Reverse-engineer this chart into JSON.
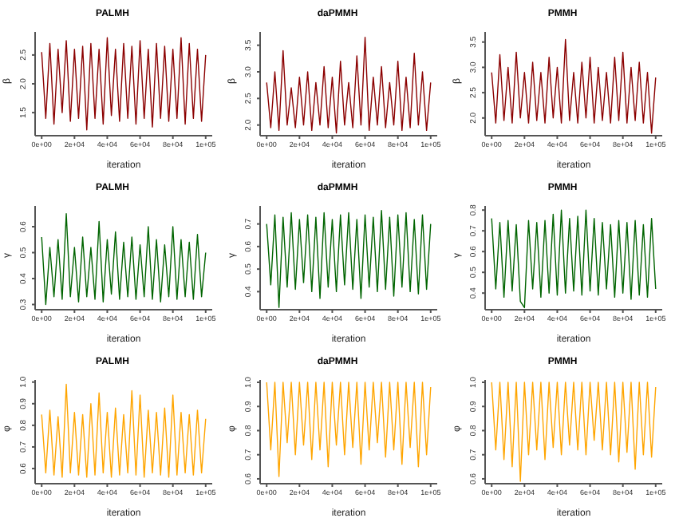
{
  "chart_data": [
    {
      "type": "line",
      "title": "PALMH",
      "xlabel": "iteration",
      "ylabel": "β",
      "xlim": [
        -4000,
        104000
      ],
      "xticks": [
        {
          "value": 0,
          "label": "0e+00"
        },
        {
          "value": 20000,
          "label": "2e+04"
        },
        {
          "value": 40000,
          "label": "4e+04"
        },
        {
          "value": 60000,
          "label": "6e+04"
        },
        {
          "value": 80000,
          "label": "8e+04"
        },
        {
          "value": 100000,
          "label": "1e+05"
        }
      ],
      "ylim": [
        1.1,
        2.9
      ],
      "yticks": [
        1.5,
        {
          "value": 2,
          "label": "2.0"
        },
        2.5
      ],
      "x": [
        0,
        2500,
        5000,
        7500,
        10000,
        12500,
        15000,
        17500,
        20000,
        22500,
        25000,
        27500,
        30000,
        32500,
        35000,
        37500,
        40000,
        42500,
        45000,
        47500,
        50000,
        52500,
        55000,
        57500,
        60000,
        62500,
        65000,
        67500,
        70000,
        72500,
        75000,
        77500,
        80000,
        82500,
        85000,
        87500,
        90000,
        92500,
        95000,
        97500,
        100000
      ],
      "series": [
        {
          "color": "#8b0000",
          "values": [
            2.55,
            1.4,
            2.7,
            1.3,
            2.6,
            1.5,
            2.75,
            1.35,
            2.6,
            1.4,
            2.65,
            1.2,
            2.7,
            1.4,
            2.6,
            1.3,
            2.8,
            1.45,
            2.6,
            1.35,
            2.7,
            1.4,
            2.65,
            1.3,
            2.75,
            1.4,
            2.6,
            1.25,
            2.7,
            1.4,
            2.65,
            1.35,
            2.6,
            1.4,
            2.8,
            1.3,
            2.7,
            1.4,
            2.6,
            1.35,
            2.5
          ]
        }
      ]
    },
    {
      "type": "line",
      "title": "daPMMH",
      "xlabel": "iteration",
      "ylabel": "β",
      "xlim": [
        -4000,
        104000
      ],
      "xticks": [
        {
          "value": 0,
          "label": "0e+00"
        },
        {
          "value": 20000,
          "label": "2e+04"
        },
        {
          "value": 40000,
          "label": "4e+04"
        },
        {
          "value": 60000,
          "label": "6e+04"
        },
        {
          "value": 80000,
          "label": "8e+04"
        },
        {
          "value": 100000,
          "label": "1e+05"
        }
      ],
      "ylim": [
        1.8,
        3.75
      ],
      "yticks": [
        {
          "value": 2,
          "label": "2.0"
        },
        2.5,
        {
          "value": 3,
          "label": "3.0"
        },
        3.5
      ],
      "x": [
        0,
        2500,
        5000,
        7500,
        10000,
        12500,
        15000,
        17500,
        20000,
        22500,
        25000,
        27500,
        30000,
        32500,
        35000,
        37500,
        40000,
        42500,
        45000,
        47500,
        50000,
        52500,
        55000,
        57500,
        60000,
        62500,
        65000,
        67500,
        70000,
        72500,
        75000,
        77500,
        80000,
        82500,
        85000,
        87500,
        90000,
        92500,
        95000,
        97500,
        100000
      ],
      "series": [
        {
          "color": "#8b0000",
          "values": [
            2.8,
            1.95,
            3.0,
            1.9,
            3.4,
            2.0,
            2.7,
            1.95,
            2.9,
            2.0,
            3.0,
            1.9,
            2.8,
            2.0,
            3.1,
            1.95,
            2.9,
            1.85,
            3.2,
            2.0,
            2.8,
            1.95,
            3.3,
            2.0,
            3.65,
            1.9,
            2.9,
            2.0,
            3.1,
            1.95,
            2.8,
            2.0,
            3.2,
            1.9,
            2.9,
            1.95,
            3.35,
            2.0,
            3.0,
            1.9,
            2.8
          ]
        }
      ]
    },
    {
      "type": "line",
      "title": "PMMH",
      "xlabel": "iteration",
      "ylabel": "β",
      "xlim": [
        -4000,
        104000
      ],
      "xticks": [
        {
          "value": 0,
          "label": "0e+00"
        },
        {
          "value": 20000,
          "label": "2e+04"
        },
        {
          "value": 40000,
          "label": "4e+04"
        },
        {
          "value": 60000,
          "label": "6e+04"
        },
        {
          "value": 80000,
          "label": "8e+04"
        },
        {
          "value": 100000,
          "label": "1e+05"
        }
      ],
      "ylim": [
        1.65,
        3.7
      ],
      "yticks": [
        {
          "value": 2,
          "label": "2.0"
        },
        2.5,
        {
          "value": 3,
          "label": "3.0"
        },
        3.5
      ],
      "x": [
        0,
        2500,
        5000,
        7500,
        10000,
        12500,
        15000,
        17500,
        20000,
        22500,
        25000,
        27500,
        30000,
        32500,
        35000,
        37500,
        40000,
        42500,
        45000,
        47500,
        50000,
        52500,
        55000,
        57500,
        60000,
        62500,
        65000,
        67500,
        70000,
        72500,
        75000,
        77500,
        80000,
        82500,
        85000,
        87500,
        90000,
        92500,
        95000,
        97500,
        100000
      ],
      "series": [
        {
          "color": "#8b0000",
          "values": [
            2.9,
            1.9,
            3.25,
            1.95,
            3.0,
            1.9,
            3.3,
            2.0,
            2.9,
            1.9,
            3.1,
            1.95,
            2.9,
            1.9,
            3.2,
            2.0,
            3.0,
            1.9,
            3.55,
            1.95,
            2.9,
            1.9,
            3.1,
            2.0,
            3.2,
            1.9,
            3.0,
            1.95,
            2.9,
            1.9,
            3.2,
            1.95,
            3.3,
            1.9,
            3.0,
            1.95,
            3.1,
            1.9,
            2.9,
            1.7,
            2.8
          ]
        }
      ]
    },
    {
      "type": "line",
      "title": "PALMH",
      "xlabel": "iteration",
      "ylabel": "γ",
      "xlim": [
        -4000,
        104000
      ],
      "xticks": [
        {
          "value": 0,
          "label": "0e+00"
        },
        {
          "value": 20000,
          "label": "2e+04"
        },
        {
          "value": 40000,
          "label": "4e+04"
        },
        {
          "value": 60000,
          "label": "6e+04"
        },
        {
          "value": 80000,
          "label": "8e+04"
        },
        {
          "value": 100000,
          "label": "1e+05"
        }
      ],
      "ylim": [
        0.28,
        0.68
      ],
      "yticks": [
        0.3,
        0.4,
        0.5,
        0.6
      ],
      "x": [
        0,
        2500,
        5000,
        7500,
        10000,
        12500,
        15000,
        17500,
        20000,
        22500,
        25000,
        27500,
        30000,
        32500,
        35000,
        37500,
        40000,
        42500,
        45000,
        47500,
        50000,
        52500,
        55000,
        57500,
        60000,
        62500,
        65000,
        67500,
        70000,
        72500,
        75000,
        77500,
        80000,
        82500,
        85000,
        87500,
        90000,
        92500,
        95000,
        97500,
        100000
      ],
      "series": [
        {
          "color": "#006400",
          "values": [
            0.56,
            0.3,
            0.52,
            0.33,
            0.55,
            0.32,
            0.65,
            0.33,
            0.52,
            0.31,
            0.56,
            0.33,
            0.52,
            0.32,
            0.62,
            0.31,
            0.55,
            0.34,
            0.58,
            0.32,
            0.54,
            0.33,
            0.56,
            0.32,
            0.53,
            0.33,
            0.6,
            0.32,
            0.55,
            0.31,
            0.53,
            0.33,
            0.6,
            0.32,
            0.55,
            0.33,
            0.54,
            0.32,
            0.57,
            0.33,
            0.5
          ]
        }
      ]
    },
    {
      "type": "line",
      "title": "daPMMH",
      "xlabel": "iteration",
      "ylabel": "γ",
      "xlim": [
        -4000,
        104000
      ],
      "xticks": [
        {
          "value": 0,
          "label": "0e+00"
        },
        {
          "value": 20000,
          "label": "2e+04"
        },
        {
          "value": 40000,
          "label": "4e+04"
        },
        {
          "value": 60000,
          "label": "6e+04"
        },
        {
          "value": 80000,
          "label": "8e+04"
        },
        {
          "value": 100000,
          "label": "1e+05"
        }
      ],
      "ylim": [
        0.32,
        0.78
      ],
      "yticks": [
        0.4,
        0.5,
        0.6,
        0.7
      ],
      "x": [
        0,
        2500,
        5000,
        7500,
        10000,
        12500,
        15000,
        17500,
        20000,
        22500,
        25000,
        27500,
        30000,
        32500,
        35000,
        37500,
        40000,
        42500,
        45000,
        47500,
        50000,
        52500,
        55000,
        57500,
        60000,
        62500,
        65000,
        67500,
        70000,
        72500,
        75000,
        77500,
        80000,
        82500,
        85000,
        87500,
        90000,
        92500,
        95000,
        97500,
        100000
      ],
      "series": [
        {
          "color": "#006400",
          "values": [
            0.7,
            0.43,
            0.74,
            0.33,
            0.73,
            0.42,
            0.75,
            0.41,
            0.72,
            0.44,
            0.74,
            0.4,
            0.73,
            0.37,
            0.75,
            0.42,
            0.72,
            0.4,
            0.74,
            0.43,
            0.75,
            0.41,
            0.72,
            0.37,
            0.74,
            0.42,
            0.73,
            0.4,
            0.76,
            0.41,
            0.73,
            0.38,
            0.74,
            0.42,
            0.75,
            0.4,
            0.72,
            0.39,
            0.74,
            0.41,
            0.7
          ]
        }
      ]
    },
    {
      "type": "line",
      "title": "PMMH",
      "xlabel": "iteration",
      "ylabel": "γ",
      "xlim": [
        -4000,
        104000
      ],
      "xticks": [
        {
          "value": 0,
          "label": "0e+00"
        },
        {
          "value": 20000,
          "label": "2e+04"
        },
        {
          "value": 40000,
          "label": "4e+04"
        },
        {
          "value": 60000,
          "label": "6e+04"
        },
        {
          "value": 80000,
          "label": "8e+04"
        },
        {
          "value": 100000,
          "label": "1e+05"
        }
      ],
      "ylim": [
        0.32,
        0.82
      ],
      "yticks": [
        0.4,
        0.5,
        0.6,
        0.7,
        0.8
      ],
      "x": [
        0,
        2500,
        5000,
        7500,
        10000,
        12500,
        15000,
        17500,
        20000,
        22500,
        25000,
        27500,
        30000,
        32500,
        35000,
        37500,
        40000,
        42500,
        45000,
        47500,
        50000,
        52500,
        55000,
        57500,
        60000,
        62500,
        65000,
        67500,
        70000,
        72500,
        75000,
        77500,
        80000,
        82500,
        85000,
        87500,
        90000,
        92500,
        95000,
        97500,
        100000
      ],
      "series": [
        {
          "color": "#006400",
          "values": [
            0.76,
            0.42,
            0.74,
            0.38,
            0.75,
            0.41,
            0.73,
            0.36,
            0.33,
            0.75,
            0.42,
            0.74,
            0.38,
            0.75,
            0.4,
            0.78,
            0.39,
            0.8,
            0.4,
            0.76,
            0.41,
            0.77,
            0.39,
            0.8,
            0.41,
            0.76,
            0.39,
            0.74,
            0.42,
            0.73,
            0.38,
            0.75,
            0.4,
            0.74,
            0.37,
            0.75,
            0.39,
            0.73,
            0.38,
            0.76,
            0.42
          ]
        }
      ]
    },
    {
      "type": "line",
      "title": "PALMH",
      "xlabel": "iteration",
      "ylabel": "φ",
      "xlim": [
        -4000,
        104000
      ],
      "xticks": [
        {
          "value": 0,
          "label": "0e+00"
        },
        {
          "value": 20000,
          "label": "2e+04"
        },
        {
          "value": 40000,
          "label": "4e+04"
        },
        {
          "value": 60000,
          "label": "6e+04"
        },
        {
          "value": 80000,
          "label": "8e+04"
        },
        {
          "value": 100000,
          "label": "1e+05"
        }
      ],
      "ylim": [
        0.53,
        1.01
      ],
      "yticks": [
        0.6,
        0.7,
        0.8,
        0.9,
        {
          "value": 1,
          "label": "1.0"
        }
      ],
      "x": [
        0,
        2500,
        5000,
        7500,
        10000,
        12500,
        15000,
        17500,
        20000,
        22500,
        25000,
        27500,
        30000,
        32500,
        35000,
        37500,
        40000,
        42500,
        45000,
        47500,
        50000,
        52500,
        55000,
        57500,
        60000,
        62500,
        65000,
        67500,
        70000,
        72500,
        75000,
        77500,
        80000,
        82500,
        85000,
        87500,
        90000,
        92500,
        95000,
        97500,
        100000
      ],
      "series": [
        {
          "color": "#ffa500",
          "values": [
            0.85,
            0.58,
            0.87,
            0.57,
            0.84,
            0.56,
            0.99,
            0.58,
            0.86,
            0.57,
            0.85,
            0.56,
            0.9,
            0.57,
            0.95,
            0.58,
            0.86,
            0.56,
            0.88,
            0.57,
            0.85,
            0.58,
            0.96,
            0.57,
            0.94,
            0.56,
            0.87,
            0.58,
            0.86,
            0.57,
            0.88,
            0.56,
            0.94,
            0.57,
            0.86,
            0.58,
            0.85,
            0.57,
            0.87,
            0.58,
            0.83
          ]
        }
      ]
    },
    {
      "type": "line",
      "title": "daPMMH",
      "xlabel": "iteration",
      "ylabel": "φ",
      "xlim": [
        -4000,
        104000
      ],
      "xticks": [
        {
          "value": 0,
          "label": "0e+00"
        },
        {
          "value": 20000,
          "label": "2e+04"
        },
        {
          "value": 40000,
          "label": "4e+04"
        },
        {
          "value": 60000,
          "label": "6e+04"
        },
        {
          "value": 80000,
          "label": "8e+04"
        },
        {
          "value": 100000,
          "label": "1e+05"
        }
      ],
      "ylim": [
        0.58,
        1.01
      ],
      "yticks": [
        0.6,
        0.7,
        0.8,
        0.9,
        {
          "value": 1,
          "label": "1.0"
        }
      ],
      "x": [
        0,
        2500,
        5000,
        7500,
        10000,
        12500,
        15000,
        17500,
        20000,
        22500,
        25000,
        27500,
        30000,
        32500,
        35000,
        37500,
        40000,
        42500,
        45000,
        47500,
        50000,
        52500,
        55000,
        57500,
        60000,
        62500,
        65000,
        67500,
        70000,
        72500,
        75000,
        77500,
        80000,
        82500,
        85000,
        87500,
        90000,
        92500,
        95000,
        97500,
        100000
      ],
      "series": [
        {
          "color": "#ffa500",
          "values": [
            1.0,
            0.72,
            1.0,
            0.61,
            1.0,
            0.75,
            1.0,
            0.7,
            1.0,
            0.74,
            1.0,
            0.68,
            1.0,
            0.72,
            1.0,
            0.65,
            1.0,
            0.74,
            1.0,
            0.7,
            1.0,
            0.73,
            1.0,
            0.66,
            1.0,
            0.72,
            1.0,
            0.75,
            1.0,
            0.69,
            1.0,
            0.72,
            1.0,
            0.66,
            1.0,
            0.73,
            1.0,
            0.65,
            1.0,
            0.7,
            0.98
          ]
        }
      ]
    },
    {
      "type": "line",
      "title": "PMMH",
      "xlabel": "iteration",
      "ylabel": "φ",
      "xlim": [
        -4000,
        104000
      ],
      "xticks": [
        {
          "value": 0,
          "label": "0e+00"
        },
        {
          "value": 20000,
          "label": "2e+04"
        },
        {
          "value": 40000,
          "label": "4e+04"
        },
        {
          "value": 60000,
          "label": "6e+04"
        },
        {
          "value": 80000,
          "label": "8e+04"
        },
        {
          "value": 100000,
          "label": "1e+05"
        }
      ],
      "ylim": [
        0.58,
        1.01
      ],
      "yticks": [
        0.6,
        0.7,
        0.8,
        0.9,
        {
          "value": 1,
          "label": "1.0"
        }
      ],
      "x": [
        0,
        2500,
        5000,
        7500,
        10000,
        12500,
        15000,
        17500,
        20000,
        22500,
        25000,
        27500,
        30000,
        32500,
        35000,
        37500,
        40000,
        42500,
        45000,
        47500,
        50000,
        52500,
        55000,
        57500,
        60000,
        62500,
        65000,
        67500,
        70000,
        72500,
        75000,
        77500,
        80000,
        82500,
        85000,
        87500,
        90000,
        92500,
        95000,
        97500,
        100000
      ],
      "series": [
        {
          "color": "#ffa500",
          "values": [
            1.0,
            0.72,
            1.0,
            0.68,
            1.0,
            0.65,
            1.0,
            0.59,
            1.0,
            0.7,
            1.0,
            0.72,
            1.0,
            0.68,
            1.0,
            0.73,
            1.0,
            0.7,
            1.0,
            0.74,
            1.0,
            0.72,
            1.0,
            0.7,
            1.0,
            0.76,
            1.0,
            0.72,
            1.0,
            0.7,
            1.0,
            0.67,
            1.0,
            0.71,
            1.0,
            0.64,
            1.0,
            0.7,
            1.0,
            0.69,
            0.98
          ]
        }
      ]
    }
  ]
}
